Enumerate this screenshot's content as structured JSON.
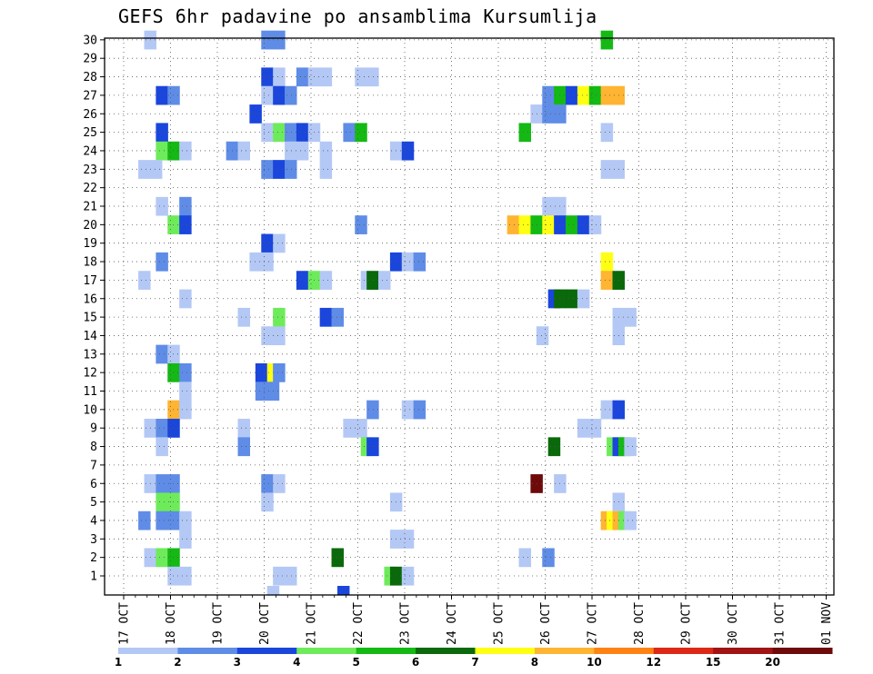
{
  "chart_data": {
    "type": "heatmap",
    "title": "GEFS 6hr padavine po ansamblima Kursumlija",
    "xlabel": "",
    "ylabel": "",
    "members": [
      1,
      2,
      3,
      4,
      5,
      6,
      7,
      8,
      9,
      10,
      11,
      12,
      13,
      14,
      15,
      16,
      17,
      18,
      19,
      20,
      21,
      22,
      23,
      24,
      25,
      26,
      27,
      28,
      29,
      30
    ],
    "ylim": [
      0.5,
      30.5
    ],
    "x_tick_labels": [
      "17 OCT",
      "18 OCT",
      "19 OCT",
      "20 OCT",
      "21 OCT",
      "22 OCT",
      "23 OCT",
      "24 OCT",
      "25 OCT",
      "26 OCT",
      "27 OCT",
      "28 OCT",
      "29 OCT",
      "30 OCT",
      "31 OCT",
      "01 NOV"
    ],
    "x_unit": "6-hour steps from 17 OCT 00Z",
    "xlim": [
      0,
      60
    ],
    "colorbar": {
      "colors": [
        "#b4c8f5",
        "#5f8ce6",
        "#1a46dc",
        "#6eeb5a",
        "#14b914",
        "#0a690a",
        "#ffff14",
        "#ffb432",
        "#ff8214",
        "#dc2814",
        "#a01414",
        "#6e0a0a"
      ],
      "labels": [
        "1",
        "2",
        "3",
        "4",
        "5",
        "6",
        "7",
        "8",
        "10",
        "12",
        "15",
        "20"
      ]
    },
    "cells": [
      [
        30,
        1.75,
        1
      ],
      [
        30,
        11.75,
        2
      ],
      [
        30,
        12.75,
        2
      ],
      [
        30,
        40.75,
        5
      ],
      [
        28,
        11.75,
        3
      ],
      [
        28,
        12.75,
        1
      ],
      [
        28,
        14.75,
        2
      ],
      [
        28,
        15.75,
        1
      ],
      [
        28,
        16.75,
        1
      ],
      [
        28,
        19.75,
        1
      ],
      [
        28,
        20.75,
        1
      ],
      [
        27,
        2.75,
        3
      ],
      [
        27,
        3.75,
        2
      ],
      [
        27,
        11.75,
        1
      ],
      [
        27,
        12.75,
        3
      ],
      [
        27,
        13.75,
        2
      ],
      [
        27,
        35.75,
        2
      ],
      [
        27,
        36.75,
        5
      ],
      [
        27,
        37.75,
        3
      ],
      [
        27,
        38.75,
        7
      ],
      [
        27,
        39.75,
        5
      ],
      [
        27,
        40.75,
        8
      ],
      [
        27,
        41.75,
        8
      ],
      [
        26,
        10.75,
        3
      ],
      [
        26,
        34.75,
        1
      ],
      [
        26,
        35.75,
        2
      ],
      [
        26,
        36.75,
        2
      ],
      [
        25,
        2.75,
        3
      ],
      [
        25,
        11.75,
        1
      ],
      [
        25,
        12.75,
        4
      ],
      [
        25,
        13.75,
        2
      ],
      [
        25,
        14.75,
        3
      ],
      [
        25,
        15.75,
        1
      ],
      [
        25,
        18.75,
        2
      ],
      [
        25,
        19.75,
        5
      ],
      [
        25,
        33.75,
        5
      ],
      [
        25,
        40.75,
        1
      ],
      [
        24,
        2.75,
        4
      ],
      [
        24,
        3.75,
        5
      ],
      [
        24,
        4.75,
        1
      ],
      [
        24,
        8.75,
        2
      ],
      [
        24,
        9.75,
        1
      ],
      [
        24,
        13.75,
        1
      ],
      [
        24,
        14.75,
        1
      ],
      [
        24,
        16.75,
        1
      ],
      [
        24,
        22.75,
        1
      ],
      [
        24,
        23.75,
        3
      ],
      [
        23,
        1.25,
        1
      ],
      [
        23,
        2.25,
        1
      ],
      [
        23,
        11.75,
        2
      ],
      [
        23,
        12.75,
        3
      ],
      [
        23,
        13.75,
        2
      ],
      [
        23,
        16.75,
        1
      ],
      [
        23,
        40.75,
        1
      ],
      [
        23,
        41.75,
        1
      ],
      [
        21,
        2.75,
        1
      ],
      [
        21,
        4.75,
        2
      ],
      [
        21,
        35.75,
        1
      ],
      [
        21,
        36.75,
        1
      ],
      [
        20,
        3.75,
        4
      ],
      [
        20,
        4.75,
        3
      ],
      [
        20,
        19.75,
        2
      ],
      [
        20,
        32.75,
        8
      ],
      [
        20,
        33.75,
        7
      ],
      [
        20,
        34.75,
        5
      ],
      [
        20,
        35.75,
        7
      ],
      [
        20,
        36.75,
        3
      ],
      [
        20,
        37.75,
        5
      ],
      [
        20,
        38.75,
        3
      ],
      [
        20,
        39.75,
        1
      ],
      [
        19,
        11.75,
        3
      ],
      [
        19,
        12.75,
        1
      ],
      [
        18,
        2.75,
        2
      ],
      [
        18,
        10.75,
        1
      ],
      [
        18,
        11.75,
        1
      ],
      [
        18,
        22.75,
        3
      ],
      [
        18,
        23.75,
        1
      ],
      [
        18,
        24.75,
        2
      ],
      [
        18,
        40.75,
        7
      ],
      [
        17,
        1.25,
        1
      ],
      [
        17,
        14.75,
        3
      ],
      [
        17,
        15.75,
        4
      ],
      [
        17,
        16.75,
        1
      ],
      [
        17,
        20.25,
        1
      ],
      [
        17,
        20.75,
        6
      ],
      [
        17,
        21.75,
        1
      ],
      [
        17,
        40.75,
        8
      ],
      [
        17,
        41.75,
        6
      ],
      [
        16,
        4.75,
        1
      ],
      [
        16,
        36.25,
        3
      ],
      [
        16,
        36.75,
        6
      ],
      [
        16,
        37.75,
        6
      ],
      [
        16,
        38.75,
        1
      ],
      [
        15,
        9.75,
        1
      ],
      [
        15,
        12.75,
        4
      ],
      [
        15,
        16.75,
        3
      ],
      [
        15,
        17.75,
        2
      ],
      [
        15,
        41.75,
        1
      ],
      [
        15,
        42.75,
        1
      ],
      [
        14,
        11.75,
        1
      ],
      [
        14,
        12.75,
        1
      ],
      [
        14,
        35.25,
        1
      ],
      [
        14,
        41.75,
        1
      ],
      [
        13,
        2.75,
        2
      ],
      [
        13,
        3.75,
        1
      ],
      [
        12,
        3.75,
        5
      ],
      [
        12,
        4.75,
        2
      ],
      [
        12,
        11.25,
        3
      ],
      [
        12,
        12.25,
        7
      ],
      [
        12,
        12.75,
        2
      ],
      [
        11,
        4.75,
        1
      ],
      [
        11,
        11.25,
        2
      ],
      [
        11,
        12.25,
        2
      ],
      [
        10,
        3.75,
        8
      ],
      [
        10,
        4.75,
        1
      ],
      [
        10,
        20.75,
        2
      ],
      [
        10,
        23.75,
        1
      ],
      [
        10,
        24.75,
        2
      ],
      [
        10,
        40.75,
        1
      ],
      [
        10,
        41.75,
        3
      ],
      [
        9,
        1.75,
        1
      ],
      [
        9,
        2.75,
        2
      ],
      [
        9,
        3.75,
        3
      ],
      [
        9,
        9.75,
        1
      ],
      [
        9,
        18.75,
        1
      ],
      [
        9,
        19.75,
        1
      ],
      [
        9,
        38.75,
        1
      ],
      [
        9,
        39.75,
        1
      ],
      [
        8,
        2.75,
        1
      ],
      [
        8,
        9.75,
        2
      ],
      [
        8,
        20.25,
        4
      ],
      [
        8,
        20.75,
        3
      ],
      [
        8,
        36.25,
        6
      ],
      [
        8,
        41.25,
        4
      ],
      [
        8,
        41.75,
        3
      ],
      [
        8,
        42.25,
        5
      ],
      [
        8,
        42.75,
        1
      ],
      [
        6,
        1.75,
        1
      ],
      [
        6,
        2.75,
        2
      ],
      [
        6,
        3.75,
        2
      ],
      [
        6,
        11.75,
        2
      ],
      [
        6,
        12.75,
        1
      ],
      [
        6,
        34.75,
        12
      ],
      [
        6,
        36.75,
        1
      ],
      [
        5,
        2.75,
        4
      ],
      [
        5,
        3.75,
        4
      ],
      [
        5,
        11.75,
        1
      ],
      [
        5,
        22.75,
        1
      ],
      [
        5,
        41.75,
        1
      ],
      [
        4,
        1.25,
        2
      ],
      [
        4,
        2.75,
        2
      ],
      [
        4,
        3.75,
        2
      ],
      [
        4,
        4.75,
        1
      ],
      [
        4,
        40.75,
        8
      ],
      [
        4,
        41.25,
        7
      ],
      [
        4,
        41.75,
        8
      ],
      [
        4,
        42.25,
        4
      ],
      [
        4,
        42.75,
        1
      ],
      [
        3,
        4.75,
        1
      ],
      [
        3,
        22.75,
        1
      ],
      [
        3,
        23.75,
        1
      ],
      [
        2,
        1.75,
        1
      ],
      [
        2,
        2.75,
        4
      ],
      [
        2,
        3.75,
        5
      ],
      [
        2,
        17.75,
        6
      ],
      [
        2,
        33.75,
        1
      ],
      [
        2,
        35.75,
        2
      ],
      [
        1,
        3.75,
        1
      ],
      [
        1,
        4.75,
        1
      ],
      [
        1,
        12.75,
        1
      ],
      [
        1,
        13.75,
        1
      ],
      [
        1,
        22.25,
        4
      ],
      [
        1,
        22.75,
        6
      ],
      [
        1,
        23.75,
        1
      ],
      [
        0,
        12.25,
        1
      ],
      [
        0,
        18.25,
        3
      ]
    ]
  }
}
